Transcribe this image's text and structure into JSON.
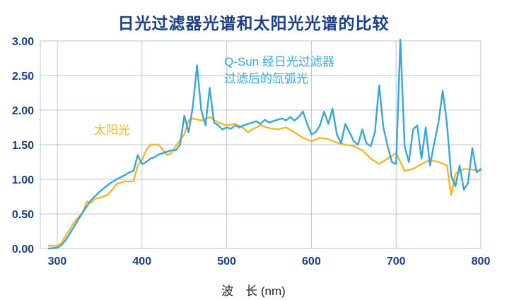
{
  "chart_data": {
    "type": "line",
    "title": "日光过滤器光谱和太阳光光谱的比较",
    "xlabel": "波　长 (nm)",
    "ylabel": "",
    "xlim": [
      280,
      800
    ],
    "ylim": [
      0,
      3.0
    ],
    "x_ticks": [
      "300",
      "400",
      "500",
      "600",
      "700",
      "800"
    ],
    "y_ticks": [
      "0.00",
      "0.50",
      "1.00",
      "1.50",
      "2.00",
      "2.50",
      "3.00"
    ],
    "grid": true,
    "series": [
      {
        "name": "Q-Sun 经日光过滤器过滤后的氙弧光",
        "color": "#3aa6d6",
        "x": [
          290,
          300,
          305,
          310,
          320,
          330,
          340,
          350,
          360,
          370,
          380,
          385,
          390,
          395,
          400,
          405,
          410,
          415,
          420,
          425,
          430,
          435,
          440,
          445,
          450,
          455,
          460,
          465,
          470,
          475,
          480,
          485,
          490,
          495,
          500,
          505,
          510,
          515,
          520,
          525,
          530,
          535,
          540,
          545,
          550,
          555,
          560,
          565,
          570,
          575,
          580,
          585,
          590,
          595,
          600,
          605,
          610,
          615,
          620,
          625,
          630,
          635,
          640,
          645,
          650,
          655,
          660,
          665,
          670,
          675,
          680,
          685,
          690,
          695,
          700,
          705,
          710,
          715,
          720,
          725,
          730,
          735,
          740,
          745,
          750,
          755,
          760,
          765,
          770,
          775,
          780,
          785,
          790,
          795,
          800
        ],
        "y": [
          0.0,
          0.01,
          0.05,
          0.12,
          0.32,
          0.52,
          0.7,
          0.82,
          0.92,
          1.0,
          1.06,
          1.1,
          1.12,
          1.35,
          1.22,
          1.25,
          1.3,
          1.32,
          1.36,
          1.38,
          1.4,
          1.42,
          1.42,
          1.5,
          1.92,
          1.68,
          2.05,
          2.65,
          2.0,
          1.78,
          2.32,
          1.82,
          1.78,
          1.72,
          1.75,
          1.73,
          1.78,
          1.75,
          1.78,
          1.8,
          1.82,
          1.84,
          1.8,
          1.86,
          1.82,
          1.84,
          1.86,
          1.88,
          1.85,
          1.9,
          1.85,
          1.9,
          1.98,
          1.8,
          1.65,
          1.68,
          1.78,
          1.98,
          1.8,
          2.02,
          1.65,
          1.52,
          1.8,
          1.68,
          1.55,
          1.5,
          1.72,
          1.52,
          1.48,
          1.68,
          2.36,
          1.75,
          1.48,
          1.25,
          1.22,
          3.02,
          1.48,
          1.25,
          1.72,
          1.78,
          1.3,
          1.75,
          1.2,
          1.52,
          1.82,
          2.28,
          1.8,
          1.05,
          0.9,
          1.2,
          0.85,
          0.95,
          1.45,
          1.1,
          1.15
        ]
      },
      {
        "name": "太阳光",
        "color": "#f4b728",
        "x": [
          290,
          300,
          305,
          310,
          320,
          330,
          335,
          340,
          345,
          350,
          360,
          365,
          370,
          380,
          390,
          395,
          400,
          405,
          410,
          415,
          420,
          425,
          430,
          435,
          440,
          450,
          455,
          460,
          470,
          480,
          490,
          500,
          510,
          520,
          525,
          530,
          540,
          550,
          560,
          570,
          580,
          590,
          600,
          610,
          620,
          630,
          640,
          650,
          660,
          670,
          680,
          690,
          700,
          710,
          720,
          730,
          740,
          750,
          760,
          765,
          770,
          780,
          790,
          800
        ],
        "y": [
          0.04,
          0.04,
          0.08,
          0.18,
          0.38,
          0.52,
          0.68,
          0.66,
          0.72,
          0.73,
          0.78,
          0.85,
          0.93,
          0.97,
          0.97,
          1.2,
          1.28,
          1.42,
          1.5,
          1.5,
          1.5,
          1.42,
          1.35,
          1.38,
          1.48,
          1.65,
          1.85,
          1.88,
          1.85,
          1.9,
          1.82,
          1.78,
          1.8,
          1.74,
          1.68,
          1.72,
          1.78,
          1.74,
          1.72,
          1.75,
          1.68,
          1.6,
          1.55,
          1.6,
          1.58,
          1.53,
          1.5,
          1.48,
          1.42,
          1.3,
          1.22,
          1.3,
          1.38,
          1.12,
          1.15,
          1.22,
          1.28,
          1.25,
          1.2,
          0.77,
          1.08,
          1.15,
          1.14,
          1.12
        ]
      }
    ],
    "annotations": [
      {
        "text": "Q-Sun 经日光过滤器",
        "color": "#3aa6d6"
      },
      {
        "text": "过滤后的氙弧光",
        "color": "#3aa6d6"
      },
      {
        "text": "太阳光",
        "color": "#f4b728"
      }
    ]
  }
}
